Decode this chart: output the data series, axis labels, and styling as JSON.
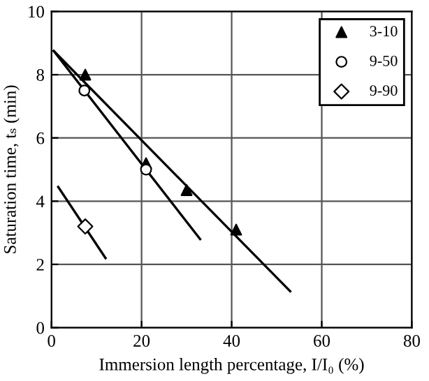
{
  "chart_data": {
    "type": "scatter",
    "xlabel": "Immersion length percentage, I/I₀ (%)",
    "ylabel": "Saturation time, tₛ (min)",
    "xlim": [
      0,
      80
    ],
    "ylim": [
      0,
      10
    ],
    "xticks": [
      0,
      20,
      40,
      60,
      80
    ],
    "yticks": [
      0,
      2,
      4,
      6,
      8,
      10
    ],
    "grid": true,
    "legend": "top right",
    "series": [
      {
        "name": "3-10",
        "color": "#000000",
        "marker": "triangle",
        "x": [
          7.5,
          21,
          30,
          41
        ],
        "values": [
          8.0,
          5.2,
          4.35,
          3.1
        ]
      },
      {
        "name": "9-50",
        "color": "#000000",
        "marker": "circle",
        "x": [
          7.3,
          21
        ],
        "values": [
          7.5,
          5.0
        ]
      },
      {
        "name": "9-90",
        "color": "#000000",
        "marker": "diamond",
        "x": [
          7.5
        ],
        "values": [
          3.2
        ]
      },
      {
        "type": "line",
        "color": "#000000",
        "marker": "none",
        "x": [
          0.5,
          53
        ],
        "values": [
          8.75,
          1.15
        ]
      },
      {
        "type": "line",
        "color": "#000000",
        "marker": "none",
        "x": [
          0.5,
          33
        ],
        "values": [
          8.75,
          2.8
        ]
      },
      {
        "type": "line",
        "color": "#000000",
        "marker": "none",
        "x": [
          1.5,
          12
        ],
        "values": [
          4.45,
          2.2
        ]
      }
    ]
  }
}
